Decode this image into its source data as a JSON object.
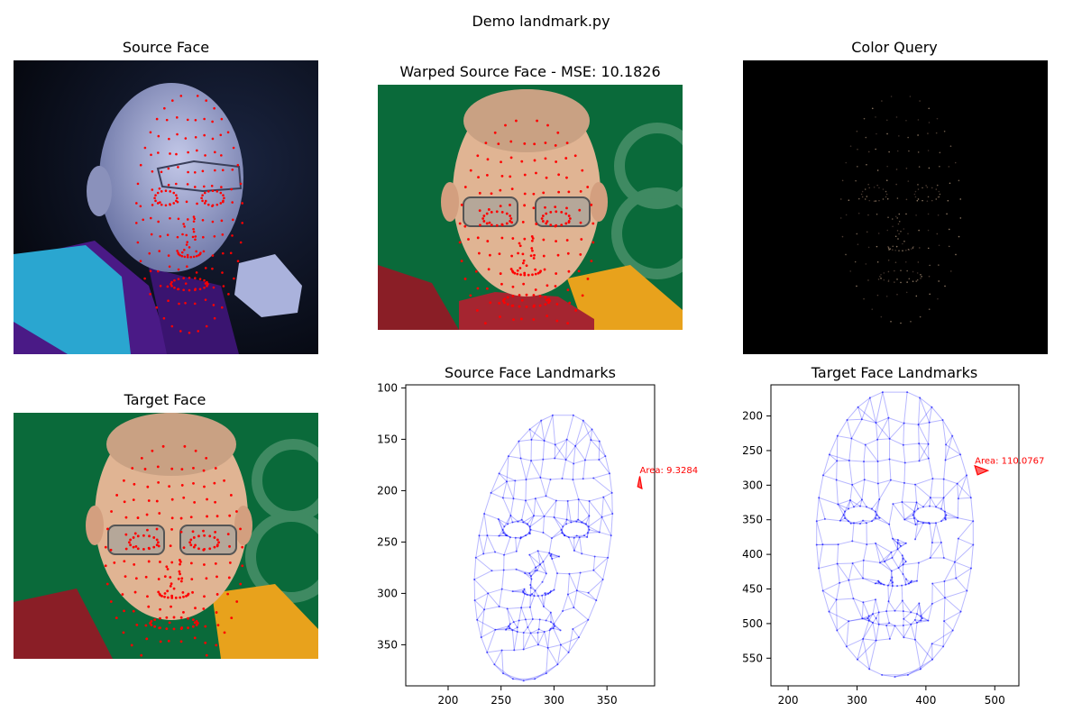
{
  "figure": {
    "suptitle": "Demo landmark.py"
  },
  "panels": {
    "source_face": {
      "title": "Source Face"
    },
    "warped_face": {
      "title": "Warped Source Face - MSE: 10.1826"
    },
    "color_query": {
      "title": "Color Query"
    },
    "target_face": {
      "title": "Target Face"
    },
    "source_landmarks": {
      "title": "Source Face Landmarks"
    },
    "target_landmarks": {
      "title": "Target Face Landmarks"
    }
  },
  "colors": {
    "landmark_dot": "#ff0000",
    "mesh": "#0000ff",
    "highlight": "#ff0000",
    "green_bg": "#0a6a3a",
    "source_bg": "#0c0f1e",
    "robe_maroon": "#8a1e26",
    "robe_yellow": "#e8a21c",
    "robe_purple": "#4a1a86",
    "robe_cyan": "#2aa6d0"
  },
  "chart_data": [
    {
      "type": "scatter",
      "title": "Source Face Landmarks",
      "xlim": [
        160,
        395
      ],
      "ylim": [
        390,
        97
      ],
      "xticks": [
        200,
        250,
        300,
        350
      ],
      "yticks": [
        100,
        150,
        200,
        250,
        300,
        350
      ],
      "grid": false,
      "annotation": {
        "text": "Area: 9.3284",
        "x": 381,
        "y": 183
      },
      "highlight_triangle": [
        [
          381,
          186
        ],
        [
          383,
          198
        ],
        [
          379,
          196
        ]
      ]
    },
    {
      "type": "scatter",
      "title": "Target Face Landmarks",
      "xlim": [
        175,
        535
      ],
      "ylim": [
        590,
        155
      ],
      "xticks": [
        200,
        300,
        400,
        500
      ],
      "yticks": [
        200,
        250,
        300,
        350,
        400,
        450,
        500,
        550
      ],
      "grid": false,
      "annotation": {
        "text": "Area: 110.0767",
        "x": 471,
        "y": 269
      },
      "highlight_triangle": [
        [
          471,
          272
        ],
        [
          490,
          279
        ],
        [
          475,
          285
        ]
      ]
    }
  ]
}
